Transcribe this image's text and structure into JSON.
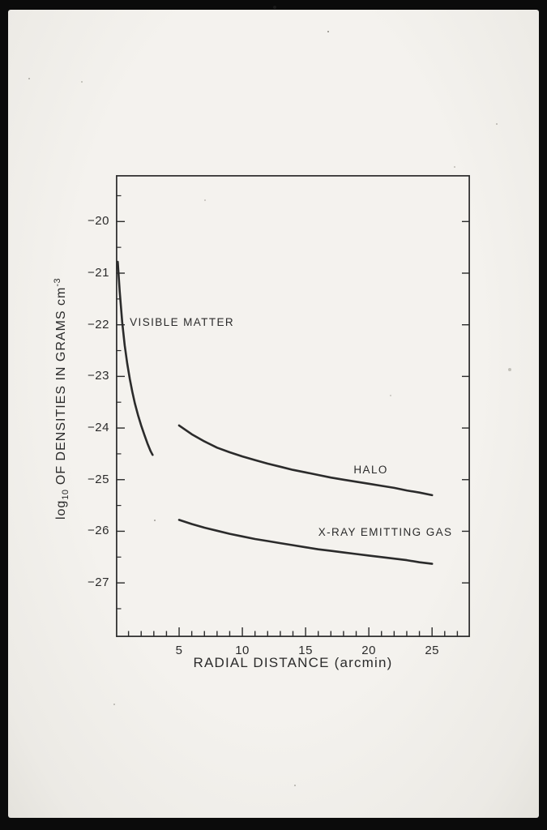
{
  "figure": {
    "description": "Photographic slide of a hand-drafted astronomy line chart",
    "frame_color": "#0b0b0b",
    "paper_color": "#f2f0ec",
    "ink_color": "#2b2b2b"
  },
  "chart_data": {
    "type": "line",
    "title": "",
    "xlabel": "RADIAL DISTANCE (arcmin)",
    "ylabel": "log10 OF DENSITIES IN GRAMS cm-3",
    "ylabel_parts": {
      "prefix": "log",
      "sub": "10",
      "main": " OF DENSITIES IN GRAMS cm",
      "sup": "-3"
    },
    "xlim": [
      0,
      28
    ],
    "ylim": [
      -28.05,
      -19.1
    ],
    "xticks_major": [
      5,
      10,
      15,
      20,
      25
    ],
    "xticks_minor_step": 1,
    "yticks_major": [
      -20,
      -21,
      -22,
      -23,
      -24,
      -25,
      -26,
      -27
    ],
    "yticks_minor_step": 0.5,
    "grid": false,
    "legend_position": "inline-curve-labels",
    "series": [
      {
        "name": "VISIBLE MATTER",
        "x": [
          0.15,
          0.3,
          0.5,
          0.7,
          0.9,
          1.1,
          1.3,
          1.5,
          1.75,
          2.0,
          2.25,
          2.5,
          2.75,
          2.9
        ],
        "y": [
          -20.78,
          -21.35,
          -21.95,
          -22.4,
          -22.75,
          -23.05,
          -23.3,
          -23.52,
          -23.75,
          -23.95,
          -24.13,
          -24.3,
          -24.45,
          -24.52
        ]
      },
      {
        "name": "HALO",
        "x": [
          5,
          6,
          7,
          8,
          9,
          10,
          11,
          12,
          13,
          14,
          15,
          16,
          17,
          18,
          19,
          20,
          21,
          22,
          23,
          24,
          25
        ],
        "y": [
          -23.95,
          -24.12,
          -24.26,
          -24.38,
          -24.47,
          -24.55,
          -24.62,
          -24.69,
          -24.75,
          -24.81,
          -24.86,
          -24.91,
          -24.96,
          -25.0,
          -25.04,
          -25.08,
          -25.12,
          -25.16,
          -25.21,
          -25.25,
          -25.3
        ]
      },
      {
        "name": "X-RAY EMITTING GAS",
        "x": [
          5,
          6,
          7,
          8,
          9,
          10,
          11,
          12,
          13,
          14,
          15,
          16,
          17,
          18,
          19,
          20,
          21,
          22,
          23,
          24,
          25
        ],
        "y": [
          -25.78,
          -25.86,
          -25.93,
          -25.99,
          -26.05,
          -26.1,
          -26.15,
          -26.19,
          -26.23,
          -26.27,
          -26.31,
          -26.35,
          -26.38,
          -26.41,
          -26.44,
          -26.47,
          -26.5,
          -26.53,
          -26.56,
          -26.6,
          -26.63
        ]
      }
    ],
    "annotations": [
      {
        "text": "VISIBLE MATTER",
        "x": 1.1,
        "y": -21.95
      },
      {
        "text": "HALO",
        "x": 18.8,
        "y": -24.82
      },
      {
        "text": "X-RAY EMITTING GAS",
        "x": 16.0,
        "y": -26.02
      }
    ]
  }
}
